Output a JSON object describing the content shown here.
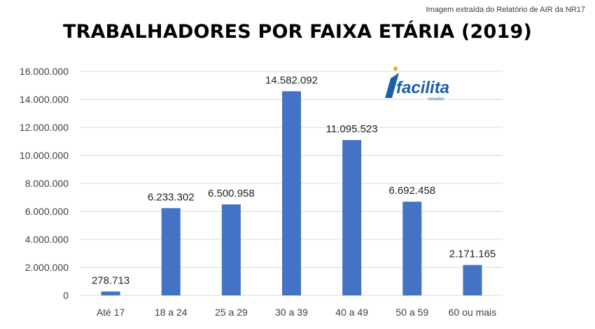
{
  "caption": "Imagem extraída do Relatório de AIR da NR17",
  "logo": {
    "text": "facilita",
    "subtext": "soluções",
    "accent": "#1b5fa8",
    "dot": "#f5a623"
  },
  "chart_data": {
    "type": "bar",
    "title": "TRABALHADORES POR FAIXA ETÁRIA (2019)",
    "categories": [
      "Até 17",
      "18 a 24",
      "25 a 29",
      "30 a 39",
      "40 a 49",
      "50 a 59",
      "60 ou mais"
    ],
    "values": [
      278713,
      6233302,
      6500958,
      14582092,
      11095523,
      6692458,
      2171165
    ],
    "value_labels": [
      "278.713",
      "6.233.302",
      "6.500.958",
      "14.582.092",
      "11.095.523",
      "6.692.458",
      "2.171.165"
    ],
    "y_ticks": [
      0,
      2000000,
      4000000,
      6000000,
      8000000,
      10000000,
      12000000,
      14000000,
      16000000
    ],
    "y_tick_labels": [
      "0",
      "2.000.000",
      "4.000.000",
      "6.000.000",
      "8.000.000",
      "10.000.000",
      "12.000.000",
      "14.000.000",
      "16.000.000"
    ],
    "ylim": [
      0,
      16000000
    ],
    "xlabel": "",
    "ylabel": "",
    "grid": true,
    "bar_color": "#4472c4",
    "grid_color": "#d9d9d9"
  }
}
